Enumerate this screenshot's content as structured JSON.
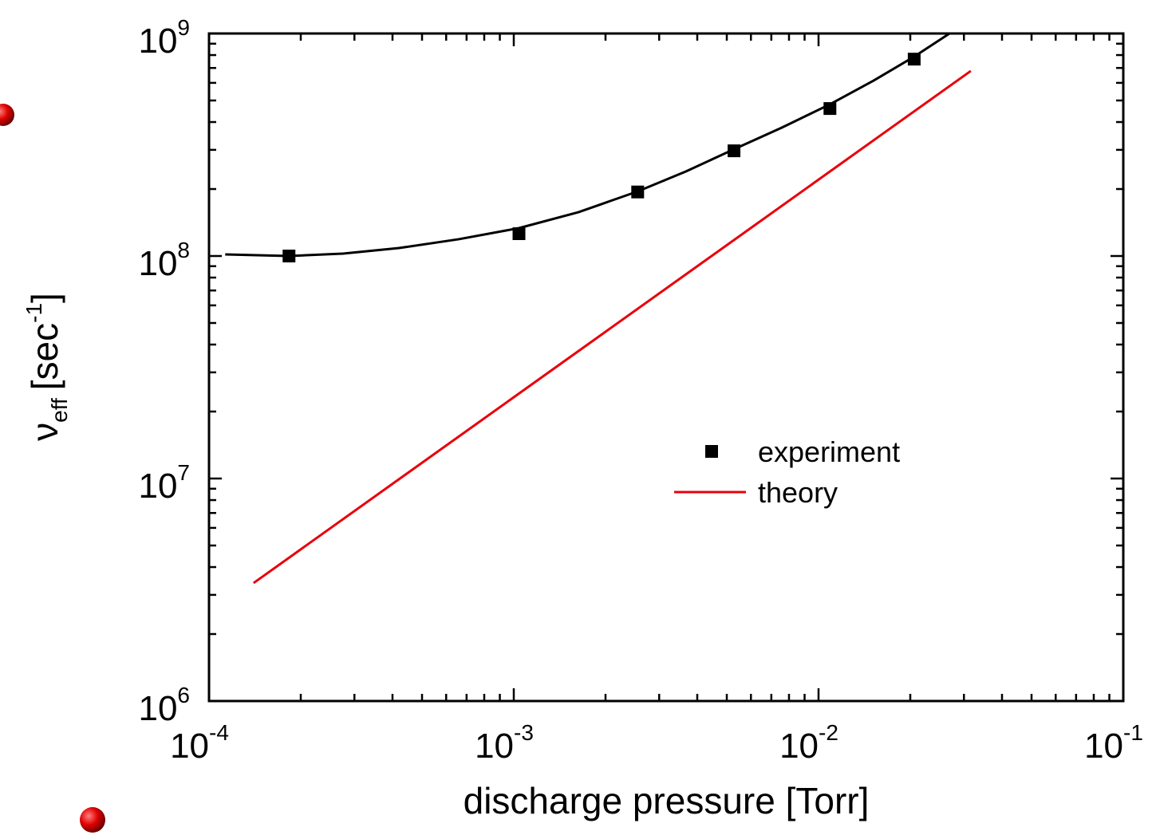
{
  "chart_data": {
    "type": "scatter",
    "x_label": "discharge pressure [Torr]",
    "y_label": {
      "symbol": "ν",
      "subscript": "eff",
      "unit": "[sec",
      "unit_exponent": "-1",
      "close": "]"
    },
    "log_x": true,
    "log_y": true,
    "minor_ticks": true,
    "xlim": [
      0.0001,
      0.1
    ],
    "ylim": [
      1000000,
      1000000000
    ],
    "xticks": [
      {
        "value": 0.0001,
        "label": "10",
        "exponent": "-4"
      },
      {
        "value": 0.001,
        "label": "10",
        "exponent": "-3"
      },
      {
        "value": 0.01,
        "label": "10",
        "exponent": "-2"
      },
      {
        "value": 0.1,
        "label": "10",
        "exponent": "-1"
      }
    ],
    "yticks": [
      {
        "value": 1000000,
        "label": "10",
        "exponent": "6"
      },
      {
        "value": 10000000,
        "label": "10",
        "exponent": "7"
      },
      {
        "value": 100000000,
        "label": "10",
        "exponent": "8"
      },
      {
        "value": 1000000000,
        "label": "10",
        "exponent": "9"
      }
    ],
    "legend": "center-right",
    "series": [
      {
        "name": "experiment",
        "color": "#000000",
        "marker": "square",
        "x": [
          0.000183,
          0.00104,
          0.00255,
          0.00528,
          0.0109,
          0.0206
        ],
        "values": [
          100000000,
          126000000,
          194000000,
          297000000,
          460000000,
          767000000
        ]
      },
      {
        "name": "theory",
        "color": "#e8000b",
        "marker": "line",
        "x": [
          0.00014,
          0.0316
        ],
        "values": [
          3390000,
          679000000
        ]
      }
    ],
    "fit": {
      "color": "#000000",
      "x": [
        0.000113,
        0.000183,
        0.000275,
        0.00042,
        0.00066,
        0.00104,
        0.00163,
        0.00255,
        0.00367,
        0.00528,
        0.00758,
        0.01088,
        0.01516,
        0.0206,
        0.0269
      ],
      "values": [
        101700000,
        100000000,
        102500000,
        108600000,
        119000000,
        133500000,
        157400000,
        195100000,
        239800000,
        302000000,
        377700000,
        480000000,
        614000000,
        787000000,
        1000000000
      ]
    }
  }
}
